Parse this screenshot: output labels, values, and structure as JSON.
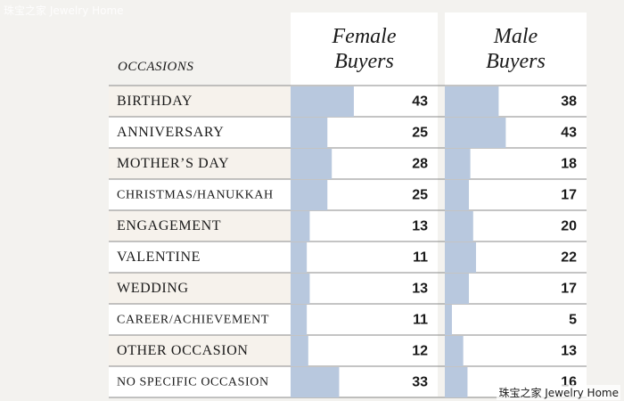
{
  "watermark": "珠宝之家 Jewelry Home",
  "chart_data": {
    "type": "table",
    "row_header": "OCCASIONS",
    "series": [
      {
        "name": "Female Buyers",
        "name_lines": [
          "Female",
          "Buyers"
        ],
        "values": [
          43,
          25,
          28,
          25,
          13,
          11,
          13,
          11,
          12,
          33
        ]
      },
      {
        "name": "Male Buyers",
        "name_lines": [
          "Male",
          "Buyers"
        ],
        "values": [
          38,
          43,
          18,
          17,
          20,
          22,
          17,
          5,
          13,
          16
        ]
      }
    ],
    "categories": [
      "BIRTHDAY",
      "ANNIVERSARY",
      "MOTHER’S DAY",
      "CHRISTMAS/HANUKKAH",
      "ENGAGEMENT",
      "VALENTINE",
      "WEDDING",
      "CAREER/ACHIEVEMENT",
      "OTHER OCCASION",
      "NO SPECIFIC OCCASION"
    ],
    "value_max": 100,
    "colors": {
      "bar": "#b8c8de",
      "column_bg": "#ffffff",
      "label_bg_alt": "#f6f2ec",
      "label_bg": "#ffffff",
      "gridline": "#8a8a8a",
      "text": "#1a1a1a"
    }
  }
}
